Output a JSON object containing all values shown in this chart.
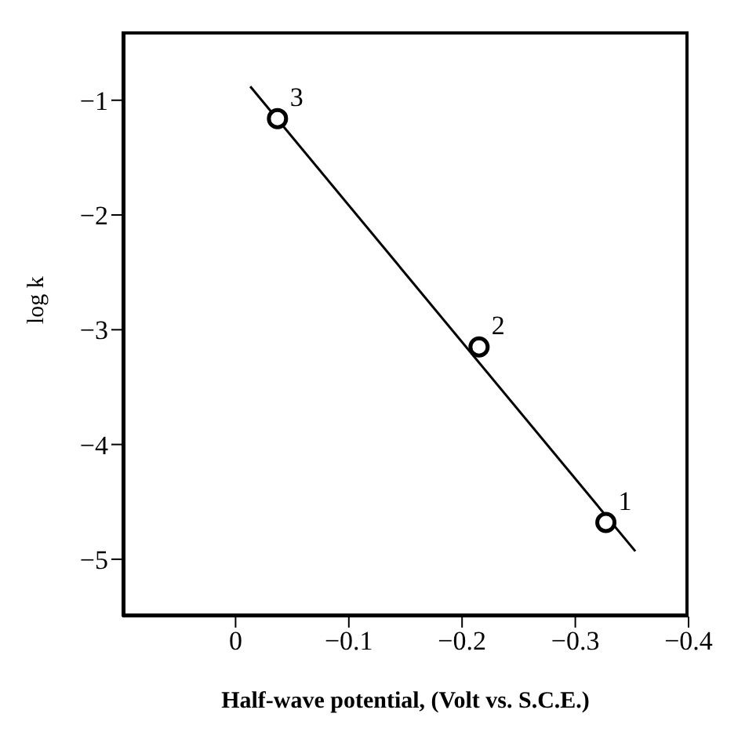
{
  "chart_data": {
    "type": "scatter",
    "xlabel": "Half-wave potential, (Volt vs. S.C.E.)",
    "ylabel": "log k",
    "series": [
      {
        "color": "#000000",
        "marker": "circle",
        "x": [
          -0.327,
          -0.215,
          -0.037
        ],
        "values": [
          -4.68,
          -3.15,
          -1.16
        ]
      },
      {
        "type": "line",
        "color": "#000000",
        "marker": "none",
        "line_style": "solid",
        "x": [
          -0.013,
          -0.353
        ],
        "values": [
          -0.88,
          -4.93
        ]
      }
    ],
    "annotations": [
      {
        "text": "1",
        "x": -0.327,
        "y": -4.68
      },
      {
        "text": "2",
        "x": -0.215,
        "y": -3.15
      },
      {
        "text": "3",
        "x": -0.037,
        "y": -1.16
      }
    ],
    "xlim": [
      0.1,
      -0.4
    ],
    "xticks": [
      0,
      -0.1,
      -0.2,
      -0.3,
      -0.4
    ],
    "ylim": [
      -5.5,
      -0.4
    ],
    "yticks": [
      -1,
      -2,
      -3,
      -4,
      -5
    ],
    "grid": false,
    "legend": false
  }
}
